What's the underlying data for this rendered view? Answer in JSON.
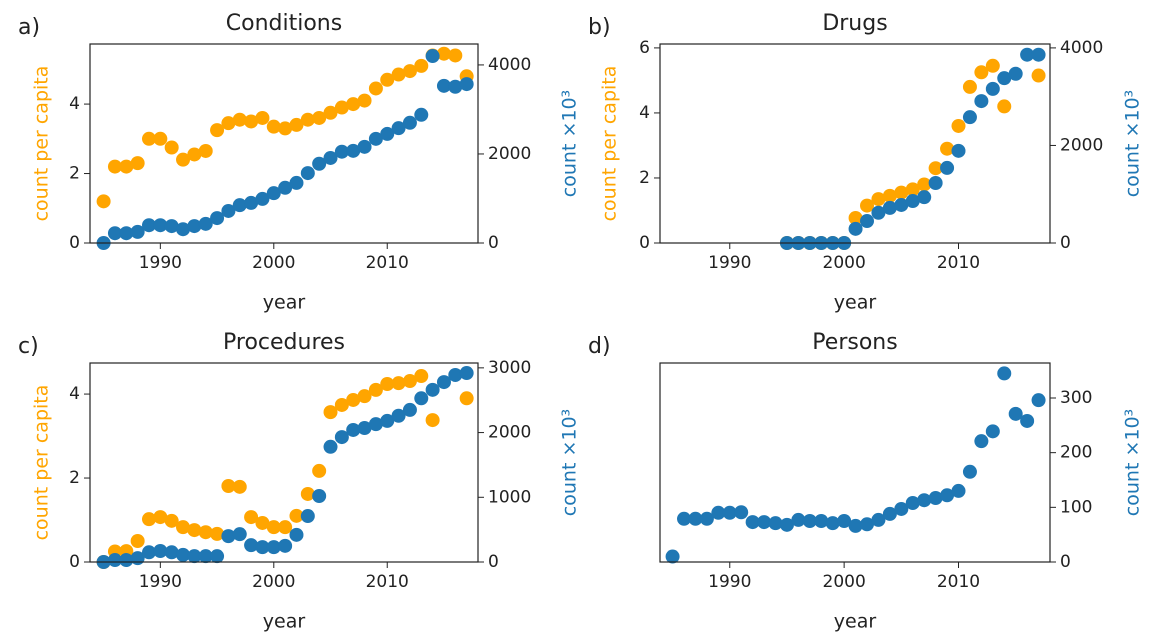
{
  "chart_data": [
    {
      "type": "scatter",
      "panel_label": "a)",
      "title": "Conditions",
      "xlabel": "year",
      "x": [
        1985,
        1986,
        1987,
        1988,
        1989,
        1990,
        1991,
        1992,
        1993,
        1994,
        1995,
        1996,
        1997,
        1998,
        1999,
        2000,
        2001,
        2002,
        2003,
        2004,
        2005,
        2006,
        2007,
        2008,
        2009,
        2010,
        2011,
        2012,
        2013,
        2014,
        2015,
        2016,
        2017
      ],
      "xlim": [
        1983.8,
        2018
      ],
      "xticks": [
        1990,
        2000,
        2010
      ],
      "ylim": [
        0,
        5.73
      ],
      "yticks": [
        0,
        2,
        4
      ],
      "y2lim": [
        0,
        4470
      ],
      "y2ticks": [
        0,
        2000,
        4000
      ],
      "series": [
        {
          "name": "count per capita",
          "color": "#ffa500",
          "values": [
            1.2,
            2.2,
            2.2,
            2.3,
            3.0,
            3.0,
            2.75,
            2.4,
            2.55,
            2.65,
            3.25,
            3.45,
            3.55,
            3.5,
            3.6,
            3.35,
            3.3,
            3.4,
            3.55,
            3.6,
            3.75,
            3.9,
            4.0,
            4.1,
            4.45,
            4.7,
            4.85,
            4.95,
            5.1,
            5.4,
            5.45,
            5.4,
            4.8
          ]
        },
        {
          "name": "count ×10³",
          "color": "#1f77b4",
          "axis": "y2",
          "values": [
            0,
            220,
            220,
            250,
            400,
            400,
            380,
            310,
            380,
            430,
            560,
            720,
            850,
            900,
            990,
            1120,
            1240,
            1350,
            1570,
            1780,
            1910,
            2050,
            2070,
            2160,
            2340,
            2450,
            2580,
            2700,
            2880,
            4200,
            3530,
            3510,
            3570
          ]
        }
      ]
    },
    {
      "type": "scatter",
      "panel_label": "b)",
      "title": "Drugs",
      "xlabel": "year",
      "x": [
        1995,
        1996,
        1997,
        1998,
        1999,
        2000,
        2001,
        2002,
        2003,
        2004,
        2005,
        2006,
        2007,
        2008,
        2009,
        2010,
        2011,
        2012,
        2013,
        2014,
        2015,
        2016,
        2017
      ],
      "xlim": [
        1983.9,
        2018
      ],
      "xticks": [
        1990,
        2000,
        2010
      ],
      "ylim": [
        0,
        6.12
      ],
      "yticks": [
        0,
        2,
        4,
        6
      ],
      "y2lim": [
        0,
        4080
      ],
      "y2ticks": [
        0,
        2000,
        4000
      ],
      "series": [
        {
          "name": "count per capita",
          "color": "#ffa500",
          "values": [
            0,
            0,
            0,
            0,
            0,
            0,
            0.77,
            1.15,
            1.35,
            1.45,
            1.55,
            1.65,
            1.8,
            2.3,
            2.9,
            3.6,
            4.8,
            5.25,
            5.45,
            4.2,
            null,
            null,
            5.15
          ]
        },
        {
          "name": "count ×10³",
          "color": "#1f77b4",
          "axis": "y2",
          "values": [
            0,
            0,
            0,
            0,
            0,
            0,
            290,
            450,
            620,
            720,
            780,
            860,
            940,
            1230,
            1540,
            1890,
            2580,
            2910,
            3160,
            3380,
            3470,
            3860,
            3860
          ]
        }
      ]
    },
    {
      "type": "scatter",
      "panel_label": "c)",
      "title": "Procedures",
      "xlabel": "year",
      "x": [
        1985,
        1986,
        1987,
        1988,
        1989,
        1990,
        1991,
        1992,
        1993,
        1994,
        1995,
        1996,
        1997,
        1998,
        1999,
        2000,
        2001,
        2002,
        2003,
        2004,
        2005,
        2006,
        2007,
        2008,
        2009,
        2010,
        2011,
        2012,
        2013,
        2014,
        2015,
        2016,
        2017
      ],
      "xlim": [
        1983.8,
        2018
      ],
      "xticks": [
        1990,
        2000,
        2010
      ],
      "ylim": [
        0,
        4.74
      ],
      "yticks": [
        0,
        2,
        4
      ],
      "y2lim": [
        0,
        3075
      ],
      "y2ticks": [
        0,
        1000,
        2000,
        3000
      ],
      "series": [
        {
          "name": "count per capita",
          "color": "#ffa500",
          "values": [
            0,
            0.25,
            0.26,
            0.5,
            1.02,
            1.07,
            0.98,
            0.83,
            0.76,
            0.71,
            0.67,
            1.81,
            1.79,
            1.07,
            0.93,
            0.83,
            0.83,
            1.1,
            1.62,
            2.17,
            3.57,
            3.74,
            3.86,
            3.95,
            4.1,
            4.24,
            4.26,
            4.31,
            4.43,
            3.38,
            null,
            null,
            3.9
          ]
        },
        {
          "name": "count ×10³",
          "color": "#1f77b4",
          "axis": "y2",
          "values": [
            0,
            30,
            30,
            60,
            150,
            170,
            150,
            110,
            90,
            90,
            90,
            400,
            430,
            260,
            230,
            230,
            250,
            420,
            710,
            1020,
            1780,
            1930,
            2040,
            2070,
            2130,
            2180,
            2260,
            2350,
            2530,
            2660,
            2780,
            2890,
            2920
          ]
        }
      ]
    },
    {
      "type": "scatter",
      "panel_label": "d)",
      "title": "Persons",
      "xlabel": "year",
      "x": [
        1985,
        1986,
        1987,
        1988,
        1989,
        1990,
        1991,
        1992,
        1993,
        1994,
        1995,
        1996,
        1997,
        1998,
        1999,
        2000,
        2001,
        2002,
        2003,
        2004,
        2005,
        2006,
        2007,
        2008,
        2009,
        2010,
        2011,
        2012,
        2013,
        2014,
        2015,
        2016,
        2017
      ],
      "xlim": [
        1983.9,
        2018
      ],
      "xticks": [
        1990,
        2000,
        2010
      ],
      "y2lim": [
        0,
        364
      ],
      "y2ticks": [
        0,
        100,
        200,
        300
      ],
      "series": [
        {
          "name": "count ×10³",
          "color": "#1f77b4",
          "axis": "y2",
          "values": [
            10,
            79,
            79,
            79,
            90,
            90,
            91,
            73,
            73,
            71,
            68,
            77,
            75,
            75,
            71,
            75,
            66,
            69,
            77,
            88,
            97,
            108,
            113,
            117,
            122,
            130,
            165,
            221,
            239,
            345,
            271,
            258,
            296
          ]
        }
      ]
    }
  ]
}
